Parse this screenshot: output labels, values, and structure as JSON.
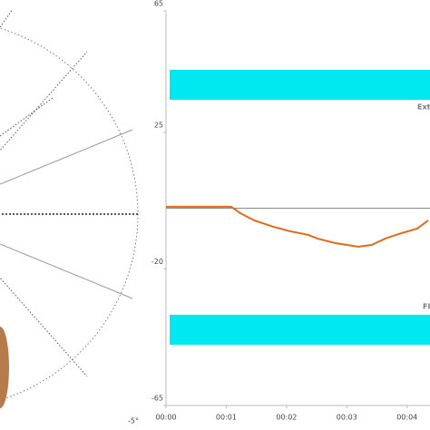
{
  "goniometer": {
    "angle_label": "-5°"
  },
  "chart_data": {
    "type": "line",
    "x": [
      0,
      1.08,
      1.23,
      1.46,
      1.76,
      2.06,
      2.36,
      2.51,
      2.81,
      3.19,
      3.41,
      3.64,
      3.86,
      4.17,
      4.35
    ],
    "series": [
      {
        "color": "#e06a1c",
        "values": [
          0.5,
          0.5,
          -1.6,
          -4,
          -6,
          -7.6,
          -8.8,
          -10,
          -11.5,
          -12.7,
          -12.1,
          -10,
          -8.5,
          -6.7,
          -4
        ]
      }
    ],
    "bands": [
      {
        "label": "Ext",
        "range": [
          35.7,
          45.6
        ],
        "color": "#00e8f0"
      },
      {
        "label": "Fl",
        "range": [
          -45,
          -35.1
        ],
        "color": "#00e8f0"
      }
    ],
    "baseline": 0,
    "xlim": [
      0,
      4.38
    ],
    "xticks": [
      {
        "value": 0,
        "label": "00:00"
      },
      {
        "value": 1,
        "label": "00:01"
      },
      {
        "value": 2,
        "label": "00:02"
      },
      {
        "value": 3,
        "label": "00:03"
      },
      {
        "value": 4,
        "label": "00:04"
      }
    ],
    "ylim": [
      -65,
      65
    ],
    "yticks": [
      -65,
      -20,
      25,
      65
    ]
  }
}
